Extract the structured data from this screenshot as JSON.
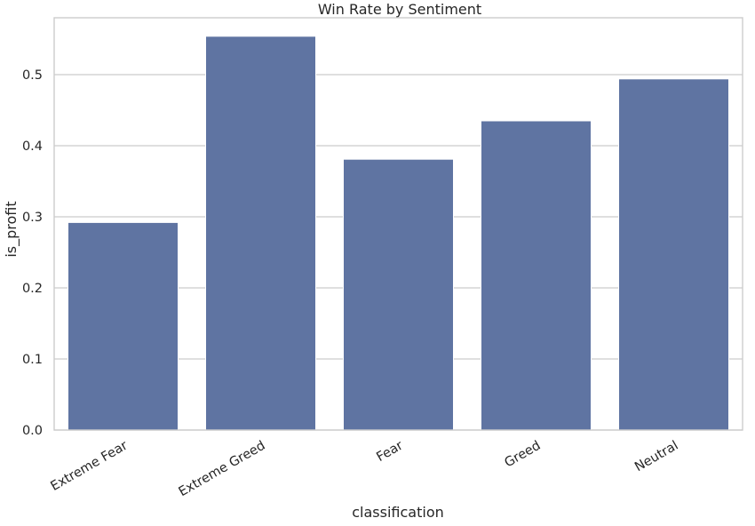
{
  "chart_data": {
    "type": "bar",
    "title": "Win Rate by Sentiment",
    "xlabel": "classification",
    "ylabel": "is_profit",
    "categories": [
      "Extreme Fear",
      "Extreme Greed",
      "Fear",
      "Greed",
      "Neutral"
    ],
    "values": [
      0.292,
      0.554,
      0.381,
      0.435,
      0.494
    ],
    "ylim": [
      0,
      0.58
    ],
    "yticks": [
      "0.0",
      "0.1",
      "0.2",
      "0.3",
      "0.4",
      "0.5"
    ],
    "ytick_values": [
      0,
      0.1,
      0.2,
      0.3,
      0.4,
      0.5
    ],
    "grid": true,
    "bar_color": "#5f74a2",
    "grid_color": "#cccccc",
    "text_color": "#262626"
  }
}
